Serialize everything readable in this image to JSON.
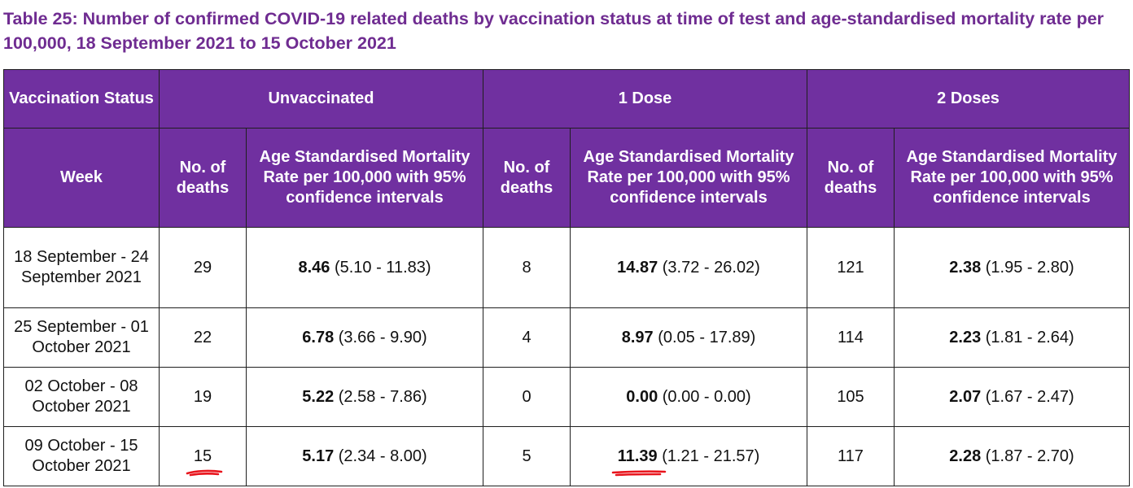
{
  "title": "Table 25: Number of confirmed COVID-19 related deaths by vaccination status at time of test and age-standardised mortality rate per 100,000, 18 September 2021 to 15 October 2021",
  "headers": {
    "vaccination_status": "Vaccination Status",
    "unvaccinated": "Unvaccinated",
    "one_dose": "1 Dose",
    "two_doses": "2 Doses",
    "week": "Week",
    "no_of_deaths": "No. of deaths",
    "asmr": "Age Standardised Mortality Rate per 100,000 with 95% confidence intervals"
  },
  "rows": [
    {
      "week": "18 September - 24 September 2021",
      "unvax_deaths": "29",
      "unvax_rate": "8.46",
      "unvax_ci": " (5.10 - 11.83)",
      "d1_deaths": "8",
      "d1_rate": "14.87",
      "d1_ci": " (3.72 - 26.02)",
      "d2_deaths": "121",
      "d2_rate": "2.38",
      "d2_ci": " (1.95 - 2.80)"
    },
    {
      "week": "25 September - 01 October 2021",
      "unvax_deaths": "22",
      "unvax_rate": "6.78",
      "unvax_ci": " (3.66 - 9.90)",
      "d1_deaths": "4",
      "d1_rate": "8.97",
      "d1_ci": " (0.05 - 17.89)",
      "d2_deaths": "114",
      "d2_rate": "2.23",
      "d2_ci": " (1.81 - 2.64)"
    },
    {
      "week": "02 October - 08 October 2021",
      "unvax_deaths": "19",
      "unvax_rate": "5.22",
      "unvax_ci": " (2.58 - 7.86)",
      "d1_deaths": "0",
      "d1_rate": "0.00",
      "d1_ci": " (0.00 - 0.00)",
      "d2_deaths": "105",
      "d2_rate": "2.07",
      "d2_ci": " (1.67 - 2.47)"
    },
    {
      "week": "09 October - 15 October 2021",
      "unvax_deaths": "15",
      "unvax_rate": "5.17",
      "unvax_ci": " (2.34 - 8.00)",
      "d1_deaths": "5",
      "d1_rate": "11.39",
      "d1_ci": " (1.21 - 21.57)",
      "d2_deaths": "117",
      "d2_rate": "2.28",
      "d2_ci": " (1.87 - 2.70)"
    }
  ],
  "colors": {
    "header_bg": "#7030a0",
    "title": "#6f2c91",
    "annotation": "#e8141c"
  }
}
